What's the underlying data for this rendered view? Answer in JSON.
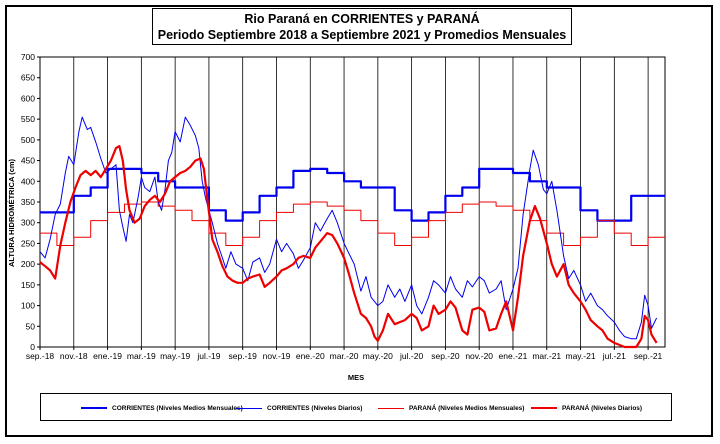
{
  "chart_data": {
    "type": "line",
    "title": "Rio Paraná en CORRIENTES  y PARANÁ",
    "subtitle": "Periodo  Septiembre  2018  a Septiembre  2021  y Promedios  Mensuales",
    "xlabel": "MES",
    "ylabel": "ALTURA  HIDROMÉTRICA  (cm)",
    "ylim": [
      0,
      700
    ],
    "y_ticks": [
      0,
      50,
      100,
      150,
      200,
      250,
      300,
      350,
      400,
      450,
      500,
      550,
      600,
      650,
      700
    ],
    "x_tick_labels": [
      "sep.-18",
      "nov.-18",
      "ene.-19",
      "mar.-19",
      "may.-19",
      "jul.-19",
      "sep.-19",
      "nov.-19",
      "ene.-20",
      "mar.-20",
      "may.-20",
      "jul.-20",
      "sep.-20",
      "nov.-20",
      "ene.-21",
      "mar.-21",
      "may.-21",
      "jul.-21",
      "sep.-21"
    ],
    "x_month_count": 37,
    "grid": "vertical lines every 2 months",
    "legend_position": "bottom",
    "series": [
      {
        "name": "CORRIENTES (Niveles Medios Mensuales)",
        "color": "#0000ee",
        "style": "step-thick",
        "values": [
          325,
          325,
          365,
          385,
          430,
          430,
          420,
          400,
          385,
          385,
          330,
          305,
          325,
          365,
          385,
          425,
          430,
          420,
          400,
          385,
          385,
          330,
          305,
          325,
          365,
          385,
          430,
          430,
          420,
          400,
          385,
          385,
          330,
          305,
          305,
          365,
          365
        ]
      },
      {
        "name": "CORRIENTES (Niveles Diarios)",
        "color": "#0000ee",
        "style": "line-thin",
        "points": [
          [
            0,
            230
          ],
          [
            0.3,
            215
          ],
          [
            0.6,
            260
          ],
          [
            0.9,
            320
          ],
          [
            1.2,
            345
          ],
          [
            1.5,
            420
          ],
          [
            1.7,
            460
          ],
          [
            2.0,
            440
          ],
          [
            2.3,
            520
          ],
          [
            2.5,
            555
          ],
          [
            2.8,
            525
          ],
          [
            3.0,
            530
          ],
          [
            3.3,
            495
          ],
          [
            3.6,
            455
          ],
          [
            3.9,
            420
          ],
          [
            4.2,
            430
          ],
          [
            4.5,
            440
          ],
          [
            4.7,
            330
          ],
          [
            4.9,
            290
          ],
          [
            5.1,
            255
          ],
          [
            5.3,
            320
          ],
          [
            5.5,
            300
          ],
          [
            5.8,
            360
          ],
          [
            6.0,
            410
          ],
          [
            6.2,
            385
          ],
          [
            6.5,
            375
          ],
          [
            6.8,
            410
          ],
          [
            7.0,
            350
          ],
          [
            7.2,
            330
          ],
          [
            7.4,
            380
          ],
          [
            7.6,
            450
          ],
          [
            7.8,
            470
          ],
          [
            8.0,
            520
          ],
          [
            8.3,
            495
          ],
          [
            8.6,
            555
          ],
          [
            8.9,
            535
          ],
          [
            9.2,
            510
          ],
          [
            9.4,
            480
          ],
          [
            9.6,
            400
          ],
          [
            9.8,
            360
          ],
          [
            10.0,
            330
          ],
          [
            10.2,
            300
          ],
          [
            10.5,
            250
          ],
          [
            10.8,
            215
          ],
          [
            11.0,
            190
          ],
          [
            11.3,
            230
          ],
          [
            11.6,
            200
          ],
          [
            12.0,
            190
          ],
          [
            12.3,
            160
          ],
          [
            12.6,
            205
          ],
          [
            13.0,
            215
          ],
          [
            13.3,
            180
          ],
          [
            13.6,
            200
          ],
          [
            14.0,
            260
          ],
          [
            14.3,
            230
          ],
          [
            14.6,
            250
          ],
          [
            15.0,
            225
          ],
          [
            15.3,
            190
          ],
          [
            15.6,
            210
          ],
          [
            16.0,
            240
          ],
          [
            16.3,
            300
          ],
          [
            16.6,
            280
          ],
          [
            17.0,
            310
          ],
          [
            17.3,
            330
          ],
          [
            17.6,
            300
          ],
          [
            18.0,
            250
          ],
          [
            18.3,
            225
          ],
          [
            18.6,
            200
          ],
          [
            19.0,
            135
          ],
          [
            19.3,
            170
          ],
          [
            19.6,
            120
          ],
          [
            20.0,
            100
          ],
          [
            20.3,
            110
          ],
          [
            20.6,
            150
          ],
          [
            21.0,
            120
          ],
          [
            21.3,
            140
          ],
          [
            21.6,
            110
          ],
          [
            22.0,
            150
          ],
          [
            22.3,
            100
          ],
          [
            22.6,
            80
          ],
          [
            23.0,
            120
          ],
          [
            23.3,
            160
          ],
          [
            23.6,
            150
          ],
          [
            24.0,
            130
          ],
          [
            24.3,
            170
          ],
          [
            24.6,
            140
          ],
          [
            25.0,
            120
          ],
          [
            25.3,
            160
          ],
          [
            25.6,
            145
          ],
          [
            26.0,
            170
          ],
          [
            26.3,
            160
          ],
          [
            26.6,
            130
          ],
          [
            27.0,
            140
          ],
          [
            27.3,
            160
          ],
          [
            27.6,
            90
          ],
          [
            28.0,
            140
          ],
          [
            28.3,
            190
          ],
          [
            28.6,
            320
          ],
          [
            29.0,
            430
          ],
          [
            29.2,
            475
          ],
          [
            29.5,
            440
          ],
          [
            29.8,
            380
          ],
          [
            30.0,
            370
          ],
          [
            30.3,
            400
          ],
          [
            30.6,
            330
          ],
          [
            31.0,
            220
          ],
          [
            31.3,
            165
          ],
          [
            31.6,
            185
          ],
          [
            32.0,
            150
          ],
          [
            32.3,
            110
          ],
          [
            32.6,
            130
          ],
          [
            33.0,
            100
          ],
          [
            33.3,
            90
          ],
          [
            33.6,
            75
          ],
          [
            34.0,
            60
          ],
          [
            34.3,
            40
          ],
          [
            34.6,
            25
          ],
          [
            35.0,
            20
          ],
          [
            35.3,
            20
          ],
          [
            35.6,
            60
          ],
          [
            35.8,
            125
          ],
          [
            36.0,
            100
          ],
          [
            36.2,
            45
          ],
          [
            36.5,
            70
          ]
        ]
      },
      {
        "name": "PARANÁ (Niveles Medios Mensuales)",
        "color": "#ee0000",
        "style": "step-thin",
        "values": [
          275,
          245,
          265,
          305,
          325,
          345,
          350,
          340,
          330,
          305,
          275,
          245,
          265,
          305,
          325,
          345,
          350,
          340,
          330,
          305,
          275,
          245,
          265,
          305,
          325,
          345,
          350,
          340,
          330,
          305,
          275,
          245,
          265,
          305,
          275,
          245,
          265
        ]
      },
      {
        "name": "PARANÁ (Niveles Diarios)",
        "color": "#ee0000",
        "style": "line-thick",
        "points": [
          [
            0,
            205
          ],
          [
            0.3,
            195
          ],
          [
            0.6,
            185
          ],
          [
            0.9,
            165
          ],
          [
            1.2,
            245
          ],
          [
            1.5,
            300
          ],
          [
            1.8,
            350
          ],
          [
            2.1,
            385
          ],
          [
            2.4,
            415
          ],
          [
            2.7,
            425
          ],
          [
            3.0,
            415
          ],
          [
            3.3,
            425
          ],
          [
            3.6,
            410
          ],
          [
            3.9,
            430
          ],
          [
            4.2,
            450
          ],
          [
            4.5,
            480
          ],
          [
            4.7,
            485
          ],
          [
            4.9,
            450
          ],
          [
            5.1,
            380
          ],
          [
            5.3,
            330
          ],
          [
            5.6,
            300
          ],
          [
            5.9,
            310
          ],
          [
            6.2,
            340
          ],
          [
            6.5,
            355
          ],
          [
            6.8,
            365
          ],
          [
            7.1,
            350
          ],
          [
            7.4,
            370
          ],
          [
            7.7,
            400
          ],
          [
            8.0,
            410
          ],
          [
            8.3,
            420
          ],
          [
            8.6,
            425
          ],
          [
            8.9,
            435
          ],
          [
            9.2,
            450
          ],
          [
            9.5,
            455
          ],
          [
            9.7,
            430
          ],
          [
            9.9,
            360
          ],
          [
            10.2,
            260
          ],
          [
            10.5,
            230
          ],
          [
            10.8,
            195
          ],
          [
            11.1,
            170
          ],
          [
            11.4,
            160
          ],
          [
            11.7,
            155
          ],
          [
            12.0,
            155
          ],
          [
            12.3,
            165
          ],
          [
            12.6,
            170
          ],
          [
            13.0,
            175
          ],
          [
            13.3,
            145
          ],
          [
            13.6,
            155
          ],
          [
            14.0,
            170
          ],
          [
            14.3,
            185
          ],
          [
            14.6,
            190
          ],
          [
            15.0,
            200
          ],
          [
            15.3,
            215
          ],
          [
            15.6,
            220
          ],
          [
            16.0,
            215
          ],
          [
            16.3,
            240
          ],
          [
            16.6,
            255
          ],
          [
            17.0,
            275
          ],
          [
            17.3,
            270
          ],
          [
            17.6,
            250
          ],
          [
            18.0,
            215
          ],
          [
            18.3,
            175
          ],
          [
            18.6,
            130
          ],
          [
            19.0,
            80
          ],
          [
            19.3,
            70
          ],
          [
            19.6,
            50
          ],
          [
            19.8,
            25
          ],
          [
            20.0,
            15
          ],
          [
            20.3,
            40
          ],
          [
            20.6,
            80
          ],
          [
            21.0,
            55
          ],
          [
            21.3,
            60
          ],
          [
            21.6,
            65
          ],
          [
            22.0,
            80
          ],
          [
            22.3,
            70
          ],
          [
            22.6,
            40
          ],
          [
            23.0,
            50
          ],
          [
            23.3,
            100
          ],
          [
            23.6,
            80
          ],
          [
            24.0,
            90
          ],
          [
            24.3,
            110
          ],
          [
            24.6,
            95
          ],
          [
            25.0,
            40
          ],
          [
            25.3,
            30
          ],
          [
            25.6,
            90
          ],
          [
            26.0,
            95
          ],
          [
            26.3,
            85
          ],
          [
            26.6,
            40
          ],
          [
            27.0,
            45
          ],
          [
            27.3,
            80
          ],
          [
            27.6,
            110
          ],
          [
            28.0,
            40
          ],
          [
            28.3,
            120
          ],
          [
            28.6,
            220
          ],
          [
            29.0,
            305
          ],
          [
            29.3,
            340
          ],
          [
            29.6,
            310
          ],
          [
            30.0,
            250
          ],
          [
            30.3,
            200
          ],
          [
            30.6,
            170
          ],
          [
            31.0,
            200
          ],
          [
            31.3,
            150
          ],
          [
            31.6,
            130
          ],
          [
            32.0,
            110
          ],
          [
            32.3,
            90
          ],
          [
            32.6,
            65
          ],
          [
            33.0,
            50
          ],
          [
            33.3,
            40
          ],
          [
            33.6,
            20
          ],
          [
            34.0,
            10
          ],
          [
            34.3,
            5
          ],
          [
            34.6,
            0
          ],
          [
            35.0,
            0
          ],
          [
            35.3,
            0
          ],
          [
            35.6,
            20
          ],
          [
            35.8,
            75
          ],
          [
            36.0,
            65
          ],
          [
            36.2,
            30
          ],
          [
            36.5,
            10
          ]
        ]
      }
    ]
  }
}
